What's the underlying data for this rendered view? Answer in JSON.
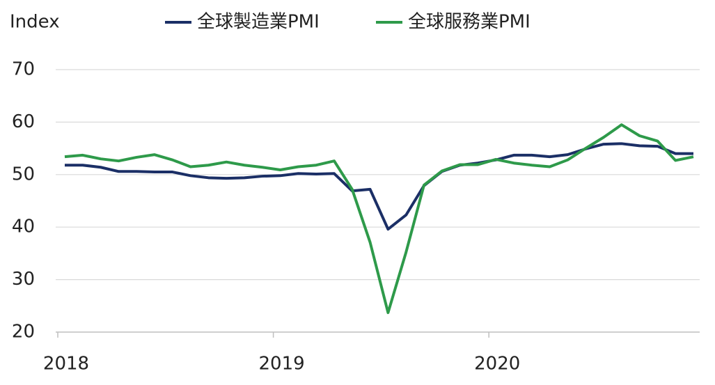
{
  "chart_data": {
    "type": "line",
    "y_label": "Index",
    "categories": [
      "2018",
      null,
      null,
      null,
      null,
      null,
      null,
      null,
      null,
      null,
      null,
      null,
      "2019",
      null,
      null,
      null,
      null,
      null,
      null,
      null,
      null,
      null,
      null,
      null,
      "2020",
      null,
      null,
      null,
      null,
      null,
      null,
      null,
      null,
      null,
      null,
      null
    ],
    "series": [
      {
        "name": "全球製造業PMI",
        "color": "#1b2f66",
        "values": [
          51.8,
          51.8,
          51.4,
          50.6,
          50.6,
          50.5,
          50.5,
          49.8,
          49.4,
          49.3,
          49.4,
          49.7,
          49.8,
          50.2,
          50.1,
          50.2,
          46.9,
          47.2,
          39.6,
          42.3,
          47.9,
          50.6,
          51.8,
          52.2,
          52.8,
          53.7,
          53.7,
          53.4,
          53.8,
          54.9,
          55.8,
          55.9,
          55.5,
          55.4,
          54.0,
          54.0
        ]
      },
      {
        "name": "全球服務業PMI",
        "color": "#2e9a4a",
        "values": [
          53.4,
          53.7,
          53.0,
          52.6,
          53.3,
          53.8,
          52.8,
          51.5,
          51.8,
          52.4,
          51.8,
          51.4,
          50.9,
          51.5,
          51.8,
          52.6,
          47.2,
          37.1,
          23.7,
          35.2,
          48.0,
          50.7,
          51.9,
          51.9,
          52.9,
          52.2,
          51.8,
          51.5,
          52.8,
          55.0,
          57.1,
          59.5,
          57.4,
          56.4,
          52.7,
          53.4
        ]
      }
    ],
    "ylim": [
      20,
      70
    ],
    "yticks": [
      20,
      30,
      40,
      50,
      60,
      70
    ],
    "grid": true,
    "legend": "top"
  }
}
